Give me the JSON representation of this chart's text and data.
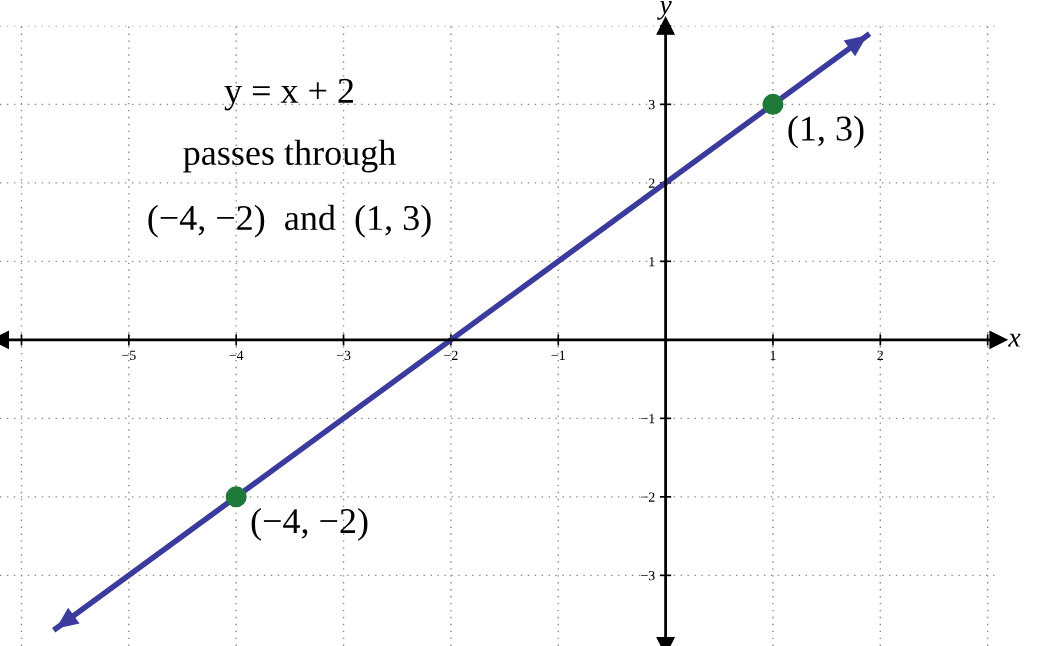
{
  "chart_data": {
    "type": "line",
    "xlabel": "x",
    "ylabel": "y",
    "xlim": [
      -6.2,
      3.1
    ],
    "ylim": [
      -3.9,
      4.0
    ],
    "xticks": [
      {
        "value": -6,
        "label": null
      },
      {
        "value": -5,
        "label": "−5"
      },
      {
        "value": -4,
        "label": "−4"
      },
      {
        "value": -3,
        "label": "−3"
      },
      {
        "value": -2,
        "label": "−2"
      },
      {
        "value": -1,
        "label": "−1"
      },
      1,
      2,
      {
        "value": 3,
        "label": null
      }
    ],
    "yticks": [
      {
        "value": -3,
        "label": "−3"
      },
      {
        "value": -2,
        "label": "−2"
      },
      {
        "value": -1,
        "label": "−1"
      },
      1,
      2,
      3,
      {
        "value": 4,
        "label": null
      }
    ],
    "grid": true,
    "line_style": "solid",
    "series": [
      {
        "type": "line",
        "color": "#3b3b9e",
        "x": [
          -5.7,
          1.9
        ],
        "values": [
          -3.7,
          3.9
        ],
        "marker": "none"
      },
      {
        "type": "scatter",
        "color": "#1f7a3a",
        "x": [
          -4,
          1
        ],
        "values": [
          -2,
          3
        ],
        "marker": "circle"
      }
    ],
    "annotations": [
      "y = x + 2",
      "passes through",
      "(−4, −2)  and  (1, 3)",
      {
        "text": "(1, 3)",
        "x": 1,
        "y": 3
      },
      {
        "text": "(−4, −2)",
        "x": -4,
        "y": -2
      }
    ]
  }
}
